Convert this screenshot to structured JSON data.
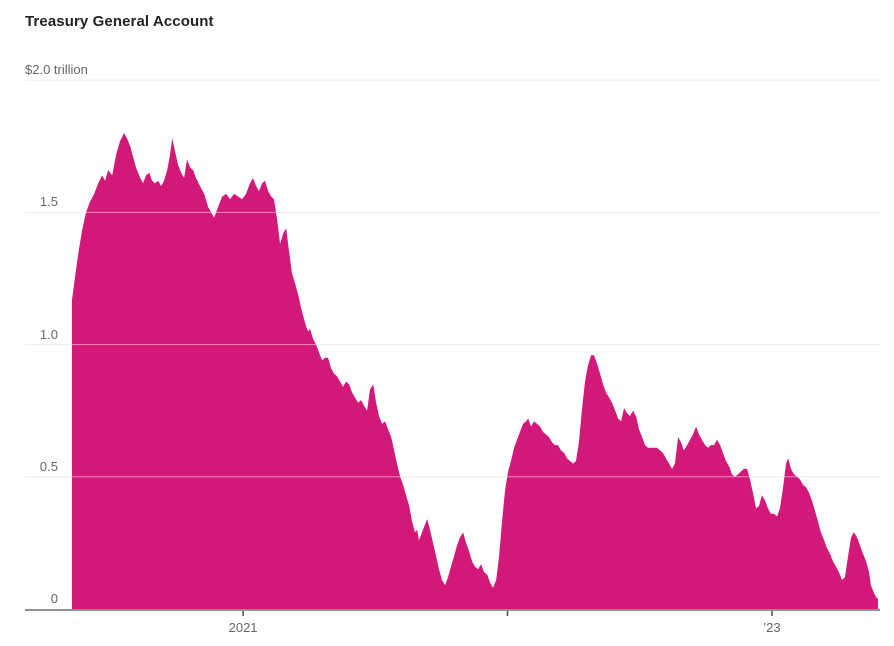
{
  "chart": {
    "title": "Treasury General Account"
  },
  "chart_data": {
    "type": "area",
    "title": "Treasury General Account",
    "series_name": "Treasury General Account balance",
    "unit": "trillion USD",
    "fill_color": "#d21878",
    "grid_color": "#dfdfdf",
    "grid_overlay_color": "rgba(255,255,255,0.5)",
    "baseline_color": "#8f8f8f",
    "tick_color": "#4d4d4d",
    "label_color": "#666666",
    "title_color": "#232323",
    "x_range": [
      2020.353,
      2023.401
    ],
    "y_range": [
      0,
      2.0
    ],
    "xlabel": "",
    "ylabel": "$ trillion",
    "legend": "none",
    "grid": "horizontal",
    "y_ticks": [
      {
        "v": 2.0,
        "label": "$2.0 trillion",
        "position": "left"
      },
      {
        "v": 1.5,
        "label": "1.5",
        "position": "right-aligned"
      },
      {
        "v": 1.0,
        "label": "1.0",
        "position": "right-aligned"
      },
      {
        "v": 0.5,
        "label": "0.5",
        "position": "right-aligned"
      },
      {
        "v": 0,
        "label": "0",
        "position": "right-aligned"
      }
    ],
    "x_ticks": [
      {
        "t": 2021,
        "label": "2021"
      },
      {
        "t": 2022,
        "label": ""
      },
      {
        "t": 2023,
        "label": "’23"
      }
    ],
    "points": [
      [
        2020.353,
        1.17
      ],
      [
        2020.365,
        1.26
      ],
      [
        2020.376,
        1.34
      ],
      [
        2020.391,
        1.43
      ],
      [
        2020.406,
        1.5
      ],
      [
        2020.421,
        1.54
      ],
      [
        2020.437,
        1.57
      ],
      [
        2020.452,
        1.61
      ],
      [
        2020.467,
        1.64
      ],
      [
        2020.478,
        1.62
      ],
      [
        2020.49,
        1.66
      ],
      [
        2020.505,
        1.64
      ],
      [
        2020.52,
        1.72
      ],
      [
        2020.535,
        1.77
      ],
      [
        2020.55,
        1.8
      ],
      [
        2020.561,
        1.78
      ],
      [
        2020.573,
        1.75
      ],
      [
        2020.584,
        1.71
      ],
      [
        2020.595,
        1.67
      ],
      [
        2020.611,
        1.63
      ],
      [
        2020.622,
        1.61
      ],
      [
        2020.633,
        1.64
      ],
      [
        2020.645,
        1.65
      ],
      [
        2020.656,
        1.62
      ],
      [
        2020.667,
        1.61
      ],
      [
        2020.679,
        1.62
      ],
      [
        2020.69,
        1.6
      ],
      [
        2020.701,
        1.62
      ],
      [
        2020.713,
        1.66
      ],
      [
        2020.724,
        1.72
      ],
      [
        2020.732,
        1.78
      ],
      [
        2020.743,
        1.73
      ],
      [
        2020.754,
        1.68
      ],
      [
        2020.766,
        1.65
      ],
      [
        2020.777,
        1.63
      ],
      [
        2020.788,
        1.7
      ],
      [
        2020.8,
        1.67
      ],
      [
        2020.811,
        1.66
      ],
      [
        2020.822,
        1.63
      ],
      [
        2020.837,
        1.6
      ],
      [
        2020.853,
        1.57
      ],
      [
        2020.868,
        1.52
      ],
      [
        2020.879,
        1.5
      ],
      [
        2020.89,
        1.48
      ],
      [
        2020.905,
        1.52
      ],
      [
        2020.921,
        1.56
      ],
      [
        2020.936,
        1.57
      ],
      [
        2020.951,
        1.55
      ],
      [
        2020.966,
        1.57
      ],
      [
        2020.981,
        1.56
      ],
      [
        2020.996,
        1.55
      ],
      [
        2021.011,
        1.57
      ],
      [
        2021.026,
        1.61
      ],
      [
        2021.038,
        1.63
      ],
      [
        2021.049,
        1.6
      ],
      [
        2021.06,
        1.58
      ],
      [
        2021.072,
        1.61
      ],
      [
        2021.083,
        1.62
      ],
      [
        2021.095,
        1.58
      ],
      [
        2021.106,
        1.56
      ],
      [
        2021.117,
        1.55
      ],
      [
        2021.129,
        1.47
      ],
      [
        2021.14,
        1.38
      ],
      [
        2021.151,
        1.42
      ],
      [
        2021.163,
        1.44
      ],
      [
        2021.174,
        1.35
      ],
      [
        2021.185,
        1.27
      ],
      [
        2021.197,
        1.23
      ],
      [
        2021.208,
        1.19
      ],
      [
        2021.219,
        1.14
      ],
      [
        2021.227,
        1.11
      ],
      [
        2021.238,
        1.07
      ],
      [
        2021.246,
        1.05
      ],
      [
        2021.253,
        1.06
      ],
      [
        2021.265,
        1.02
      ],
      [
        2021.276,
        1.0
      ],
      [
        2021.287,
        0.97
      ],
      [
        2021.299,
        0.94
      ],
      [
        2021.31,
        0.95
      ],
      [
        2021.321,
        0.95
      ],
      [
        2021.333,
        0.91
      ],
      [
        2021.344,
        0.89
      ],
      [
        2021.355,
        0.88
      ],
      [
        2021.367,
        0.86
      ],
      [
        2021.378,
        0.84
      ],
      [
        2021.389,
        0.86
      ],
      [
        2021.401,
        0.85
      ],
      [
        2021.412,
        0.82
      ],
      [
        2021.423,
        0.8
      ],
      [
        2021.435,
        0.78
      ],
      [
        2021.446,
        0.79
      ],
      [
        2021.457,
        0.77
      ],
      [
        2021.469,
        0.75
      ],
      [
        2021.48,
        0.83
      ],
      [
        2021.492,
        0.85
      ],
      [
        2021.503,
        0.78
      ],
      [
        2021.514,
        0.73
      ],
      [
        2021.526,
        0.7
      ],
      [
        2021.537,
        0.71
      ],
      [
        2021.548,
        0.68
      ],
      [
        2021.56,
        0.65
      ],
      [
        2021.571,
        0.6
      ],
      [
        2021.582,
        0.55
      ],
      [
        2021.594,
        0.5
      ],
      [
        2021.605,
        0.47
      ],
      [
        2021.616,
        0.43
      ],
      [
        2021.628,
        0.39
      ],
      [
        2021.639,
        0.33
      ],
      [
        2021.65,
        0.29
      ],
      [
        2021.658,
        0.3
      ],
      [
        2021.665,
        0.26
      ],
      [
        2021.673,
        0.28
      ],
      [
        2021.684,
        0.31
      ],
      [
        2021.696,
        0.34
      ],
      [
        2021.707,
        0.3
      ],
      [
        2021.718,
        0.25
      ],
      [
        2021.73,
        0.2
      ],
      [
        2021.741,
        0.15
      ],
      [
        2021.752,
        0.11
      ],
      [
        2021.764,
        0.09
      ],
      [
        2021.775,
        0.12
      ],
      [
        2021.786,
        0.16
      ],
      [
        2021.798,
        0.2
      ],
      [
        2021.809,
        0.24
      ],
      [
        2021.82,
        0.27
      ],
      [
        2021.832,
        0.29
      ],
      [
        2021.843,
        0.25
      ],
      [
        2021.854,
        0.22
      ],
      [
        2021.866,
        0.18
      ],
      [
        2021.877,
        0.16
      ],
      [
        2021.889,
        0.15
      ],
      [
        2021.9,
        0.17
      ],
      [
        2021.911,
        0.14
      ],
      [
        2021.923,
        0.13
      ],
      [
        2021.934,
        0.1
      ],
      [
        2021.945,
        0.08
      ],
      [
        2021.957,
        0.11
      ],
      [
        2021.968,
        0.2
      ],
      [
        2021.979,
        0.33
      ],
      [
        2021.991,
        0.45
      ],
      [
        2022.002,
        0.52
      ],
      [
        2022.013,
        0.56
      ],
      [
        2022.025,
        0.61
      ],
      [
        2022.036,
        0.64
      ],
      [
        2022.047,
        0.67
      ],
      [
        2022.059,
        0.7
      ],
      [
        2022.07,
        0.71
      ],
      [
        2022.078,
        0.72
      ],
      [
        2022.089,
        0.69
      ],
      [
        2022.1,
        0.71
      ],
      [
        2022.112,
        0.7
      ],
      [
        2022.123,
        0.69
      ],
      [
        2022.134,
        0.67
      ],
      [
        2022.146,
        0.66
      ],
      [
        2022.157,
        0.65
      ],
      [
        2022.168,
        0.63
      ],
      [
        2022.18,
        0.62
      ],
      [
        2022.191,
        0.62
      ],
      [
        2022.202,
        0.6
      ],
      [
        2022.214,
        0.59
      ],
      [
        2022.225,
        0.57
      ],
      [
        2022.236,
        0.56
      ],
      [
        2022.248,
        0.55
      ],
      [
        2022.259,
        0.56
      ],
      [
        2022.27,
        0.63
      ],
      [
        2022.282,
        0.76
      ],
      [
        2022.293,
        0.86
      ],
      [
        2022.304,
        0.92
      ],
      [
        2022.316,
        0.96
      ],
      [
        2022.327,
        0.96
      ],
      [
        2022.338,
        0.93
      ],
      [
        2022.35,
        0.89
      ],
      [
        2022.361,
        0.85
      ],
      [
        2022.372,
        0.82
      ],
      [
        2022.384,
        0.8
      ],
      [
        2022.395,
        0.78
      ],
      [
        2022.407,
        0.75
      ],
      [
        2022.418,
        0.72
      ],
      [
        2022.429,
        0.71
      ],
      [
        2022.441,
        0.76
      ],
      [
        2022.452,
        0.74
      ],
      [
        2022.463,
        0.73
      ],
      [
        2022.475,
        0.75
      ],
      [
        2022.486,
        0.73
      ],
      [
        2022.497,
        0.68
      ],
      [
        2022.509,
        0.65
      ],
      [
        2022.52,
        0.62
      ],
      [
        2022.531,
        0.61
      ],
      [
        2022.543,
        0.61
      ],
      [
        2022.554,
        0.61
      ],
      [
        2022.565,
        0.61
      ],
      [
        2022.577,
        0.6
      ],
      [
        2022.588,
        0.59
      ],
      [
        2022.599,
        0.57
      ],
      [
        2022.611,
        0.55
      ],
      [
        2022.622,
        0.53
      ],
      [
        2022.633,
        0.55
      ],
      [
        2022.645,
        0.65
      ],
      [
        2022.656,
        0.63
      ],
      [
        2022.667,
        0.6
      ],
      [
        2022.679,
        0.62
      ],
      [
        2022.69,
        0.64
      ],
      [
        2022.701,
        0.66
      ],
      [
        2022.713,
        0.69
      ],
      [
        2022.724,
        0.66
      ],
      [
        2022.735,
        0.64
      ],
      [
        2022.747,
        0.62
      ],
      [
        2022.758,
        0.61
      ],
      [
        2022.769,
        0.62
      ],
      [
        2022.781,
        0.62
      ],
      [
        2022.792,
        0.64
      ],
      [
        2022.804,
        0.62
      ],
      [
        2022.815,
        0.59
      ],
      [
        2022.826,
        0.56
      ],
      [
        2022.838,
        0.54
      ],
      [
        2022.849,
        0.51
      ],
      [
        2022.86,
        0.5
      ],
      [
        2022.872,
        0.51
      ],
      [
        2022.883,
        0.52
      ],
      [
        2022.894,
        0.53
      ],
      [
        2022.906,
        0.53
      ],
      [
        2022.917,
        0.49
      ],
      [
        2022.928,
        0.44
      ],
      [
        2022.94,
        0.38
      ],
      [
        2022.951,
        0.39
      ],
      [
        2022.962,
        0.43
      ],
      [
        2022.974,
        0.41
      ],
      [
        2022.985,
        0.38
      ],
      [
        2022.996,
        0.36
      ],
      [
        2023.008,
        0.36
      ],
      [
        2023.019,
        0.35
      ],
      [
        2023.03,
        0.38
      ],
      [
        2023.042,
        0.46
      ],
      [
        2023.053,
        0.55
      ],
      [
        2023.061,
        0.57
      ],
      [
        2023.072,
        0.53
      ],
      [
        2023.083,
        0.51
      ],
      [
        2023.095,
        0.5
      ],
      [
        2023.106,
        0.49
      ],
      [
        2023.117,
        0.47
      ],
      [
        2023.129,
        0.46
      ],
      [
        2023.14,
        0.44
      ],
      [
        2023.151,
        0.41
      ],
      [
        2023.163,
        0.37
      ],
      [
        2023.174,
        0.33
      ],
      [
        2023.185,
        0.29
      ],
      [
        2023.197,
        0.26
      ],
      [
        2023.208,
        0.23
      ],
      [
        2023.219,
        0.21
      ],
      [
        2023.231,
        0.18
      ],
      [
        2023.242,
        0.16
      ],
      [
        2023.253,
        0.14
      ],
      [
        2023.265,
        0.11
      ],
      [
        2023.276,
        0.12
      ],
      [
        2023.288,
        0.2
      ],
      [
        2023.299,
        0.27
      ],
      [
        2023.31,
        0.29
      ],
      [
        2023.322,
        0.27
      ],
      [
        2023.333,
        0.24
      ],
      [
        2023.344,
        0.21
      ],
      [
        2023.356,
        0.18
      ],
      [
        2023.367,
        0.14
      ],
      [
        2023.374,
        0.09
      ],
      [
        2023.386,
        0.06
      ],
      [
        2023.397,
        0.04
      ],
      [
        2023.401,
        0.04
      ]
    ]
  }
}
